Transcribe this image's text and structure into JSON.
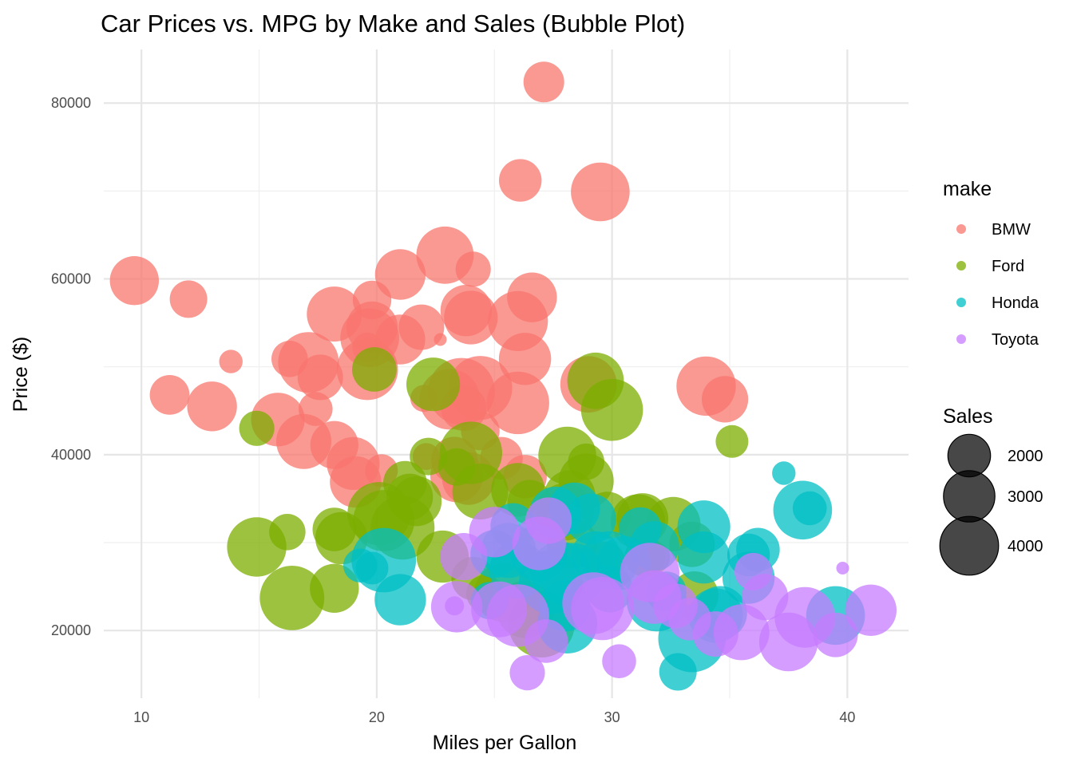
{
  "chart_data": {
    "type": "scatter",
    "title": "Car Prices vs. MPG by Make and Sales (Bubble Plot)",
    "xlabel": "Miles per Gallon",
    "ylabel": "Price ($)",
    "xlim": [
      8.4,
      42.6
    ],
    "ylim": [
      12300,
      86100
    ],
    "x_ticks": [
      10,
      20,
      30,
      40
    ],
    "y_ticks": [
      20000,
      40000,
      60000,
      80000
    ],
    "x_minor": [
      15,
      25,
      35
    ],
    "y_minor": [
      30000,
      50000,
      70000
    ],
    "grid": true,
    "legend_position": "right",
    "color_legend": {
      "title": "make",
      "items": [
        {
          "name": "BMW",
          "color": "#F8766D"
        },
        {
          "name": "Ford",
          "color": "#7CAE00"
        },
        {
          "name": "Honda",
          "color": "#00BFC4"
        },
        {
          "name": "Toyota",
          "color": "#C77CFF"
        }
      ]
    },
    "size_legend": {
      "title": "Sales",
      "values": [
        2000,
        3000,
        4000
      ],
      "color": "#000000"
    },
    "series": [
      {
        "name": "BMW",
        "color": "#F8766D",
        "points": [
          [
            27.1,
            82400,
            1800
          ],
          [
            26.1,
            71200,
            2000
          ],
          [
            29.5,
            69900,
            4000
          ],
          [
            9.7,
            59800,
            2700
          ],
          [
            12.0,
            57700,
            1500
          ],
          [
            13.8,
            50600,
            500
          ],
          [
            16.3,
            50900,
            1400
          ],
          [
            11.2,
            46800,
            1700
          ],
          [
            13.0,
            45500,
            2800
          ],
          [
            15.8,
            44000,
            3300
          ],
          [
            16.9,
            41500,
            3500
          ],
          [
            17.4,
            45200,
            1200
          ],
          [
            18.2,
            41100,
            2600
          ],
          [
            17.6,
            48800,
            2300
          ],
          [
            17.1,
            50500,
            4300
          ],
          [
            18.2,
            56000,
            3500
          ],
          [
            19.6,
            52200,
            900
          ],
          [
            19.8,
            57600,
            1600
          ],
          [
            19.8,
            54500,
            3000
          ],
          [
            19.7,
            53300,
            4000
          ],
          [
            19.6,
            49700,
            4400
          ],
          [
            21.0,
            53100,
            2800
          ],
          [
            21.0,
            60500,
            2900
          ],
          [
            21.9,
            54500,
            2300
          ],
          [
            22.7,
            53100,
            100
          ],
          [
            22.9,
            62700,
            3800
          ],
          [
            24.1,
            61100,
            1300
          ],
          [
            23.8,
            56400,
            3000
          ],
          [
            24.0,
            55600,
            3300
          ],
          [
            24.4,
            47600,
            4800
          ],
          [
            23.6,
            47200,
            5300
          ],
          [
            23.1,
            46300,
            4300
          ],
          [
            22.0,
            46400,
            700
          ],
          [
            23.7,
            45300,
            2300
          ],
          [
            24.4,
            42700,
            1600
          ],
          [
            25.3,
            39600,
            2000
          ],
          [
            23.3,
            39400,
            2400
          ],
          [
            23.4,
            37600,
            3200
          ],
          [
            23.9,
            37300,
            3200
          ],
          [
            19.0,
            39000,
            3200
          ],
          [
            19.1,
            36900,
            3000
          ],
          [
            20.2,
            38200,
            1100
          ],
          [
            22.1,
            39800,
            700
          ],
          [
            26.3,
            37500,
            2100
          ],
          [
            26.0,
            55200,
            4200
          ],
          [
            26.6,
            57900,
            2800
          ],
          [
            26.3,
            50900,
            3100
          ],
          [
            26.0,
            45900,
            4600
          ],
          [
            29.0,
            48000,
            3700
          ],
          [
            34.0,
            47800,
            4100
          ],
          [
            34.8,
            46300,
            2400
          ]
        ]
      },
      {
        "name": "Ford",
        "color": "#7CAE00",
        "points": [
          [
            14.9,
            43000,
            1300
          ],
          [
            14.9,
            29500,
            4100
          ],
          [
            16.2,
            31200,
            1400
          ],
          [
            16.4,
            23700,
            4900
          ],
          [
            18.2,
            31500,
            2100
          ],
          [
            18.2,
            24800,
            2700
          ],
          [
            18.5,
            30500,
            3100
          ],
          [
            19.9,
            49700,
            2200
          ],
          [
            20.1,
            33300,
            4700
          ],
          [
            20.3,
            32500,
            4400
          ],
          [
            21.2,
            36800,
            2100
          ],
          [
            21.4,
            35200,
            2400
          ],
          [
            21.1,
            31700,
            4800
          ],
          [
            21.7,
            34700,
            2800
          ],
          [
            22.2,
            39800,
            1500
          ],
          [
            22.4,
            48000,
            3300
          ],
          [
            22.8,
            28400,
            3100
          ],
          [
            23.4,
            38600,
            1500
          ],
          [
            24.0,
            40200,
            4600
          ],
          [
            24.1,
            25900,
            2100
          ],
          [
            24.4,
            35800,
            3600
          ],
          [
            24.6,
            24200,
            1500
          ],
          [
            25.4,
            24300,
            4000
          ],
          [
            26.0,
            36000,
            3300
          ],
          [
            26.5,
            34600,
            2200
          ],
          [
            26.3,
            22400,
            3800
          ],
          [
            27.0,
            20700,
            5200
          ],
          [
            28.1,
            39900,
            3900
          ],
          [
            28.0,
            33500,
            3800
          ],
          [
            28.2,
            35300,
            3000
          ],
          [
            28.3,
            29900,
            2900
          ],
          [
            28.9,
            37000,
            3500
          ],
          [
            28.9,
            39200,
            1400
          ],
          [
            29.3,
            48400,
            3700
          ],
          [
            30.0,
            45100,
            4500
          ],
          [
            29.8,
            33100,
            2500
          ],
          [
            29.7,
            27800,
            1800
          ],
          [
            31.1,
            32400,
            3400
          ],
          [
            31.3,
            32700,
            3000
          ],
          [
            31.4,
            28400,
            1800
          ],
          [
            32.6,
            32100,
            3400
          ],
          [
            33.4,
            29800,
            2300
          ],
          [
            33.5,
            24000,
            2600
          ],
          [
            35.1,
            41500,
            1100
          ],
          [
            31.8,
            28300,
            1000
          ]
        ]
      },
      {
        "name": "Honda",
        "color": "#00BFC4",
        "points": [
          [
            19.3,
            27400,
            1200
          ],
          [
            19.8,
            27100,
            1100
          ],
          [
            20.3,
            28000,
            4900
          ],
          [
            21.0,
            23500,
            3000
          ],
          [
            24.8,
            23400,
            1500
          ],
          [
            25.0,
            28700,
            2600
          ],
          [
            25.6,
            29100,
            3500
          ],
          [
            25.8,
            31900,
            2300
          ],
          [
            26.0,
            26900,
            3800
          ],
          [
            26.9,
            28800,
            3800
          ],
          [
            27.4,
            25500,
            4800
          ],
          [
            27.6,
            33400,
            3100
          ],
          [
            27.8,
            26700,
            4200
          ],
          [
            28.0,
            22800,
            3000
          ],
          [
            28.3,
            26300,
            4900
          ],
          [
            28.1,
            20800,
            4200
          ],
          [
            28.4,
            33900,
            3000
          ],
          [
            29.1,
            32700,
            2900
          ],
          [
            29.3,
            28500,
            2700
          ],
          [
            29.9,
            28000,
            3900
          ],
          [
            29.9,
            24700,
            2400
          ],
          [
            30.5,
            27700,
            3300
          ],
          [
            31.2,
            31600,
            2000
          ],
          [
            31.8,
            29600,
            2800
          ],
          [
            31.9,
            23300,
            4200
          ],
          [
            32.3,
            24400,
            1800
          ],
          [
            32.8,
            15300,
            1500
          ],
          [
            33.4,
            19100,
            5400
          ],
          [
            33.9,
            31800,
            3200
          ],
          [
            33.9,
            28300,
            3100
          ],
          [
            34.4,
            21700,
            3400
          ],
          [
            34.6,
            22000,
            3300
          ],
          [
            35.8,
            28600,
            2000
          ],
          [
            35.8,
            26000,
            3100
          ],
          [
            36.2,
            29200,
            2100
          ],
          [
            37.3,
            37900,
            500
          ],
          [
            38.1,
            33700,
            4000
          ],
          [
            38.4,
            33900,
            1200
          ],
          [
            39.5,
            21700,
            4000
          ]
        ]
      },
      {
        "name": "Toyota",
        "color": "#C77CFF",
        "points": [
          [
            23.3,
            22800,
            300
          ],
          [
            23.4,
            22700,
            3000
          ],
          [
            23.7,
            28400,
            2500
          ],
          [
            25.0,
            31200,
            2900
          ],
          [
            25.2,
            22400,
            3600
          ],
          [
            26.0,
            21700,
            4600
          ],
          [
            26.4,
            15200,
            1300
          ],
          [
            26.9,
            29900,
            3300
          ],
          [
            27.2,
            18800,
            2100
          ],
          [
            27.3,
            32500,
            2400
          ],
          [
            29.2,
            23100,
            4500
          ],
          [
            29.6,
            22500,
            4700
          ],
          [
            30.3,
            16500,
            1200
          ],
          [
            31.6,
            26600,
            4100
          ],
          [
            31.8,
            23800,
            3300
          ],
          [
            32.7,
            22800,
            2200
          ],
          [
            33.3,
            21300,
            2000
          ],
          [
            34.4,
            19600,
            2300
          ],
          [
            35.5,
            19800,
            3600
          ],
          [
            36.0,
            26700,
            1500
          ],
          [
            36.5,
            23800,
            2400
          ],
          [
            37.5,
            18700,
            4000
          ],
          [
            38.2,
            21500,
            4300
          ],
          [
            39.5,
            19500,
            2200
          ],
          [
            39.8,
            27100,
            100
          ],
          [
            41.0,
            22300,
            3000
          ]
        ]
      }
    ]
  }
}
